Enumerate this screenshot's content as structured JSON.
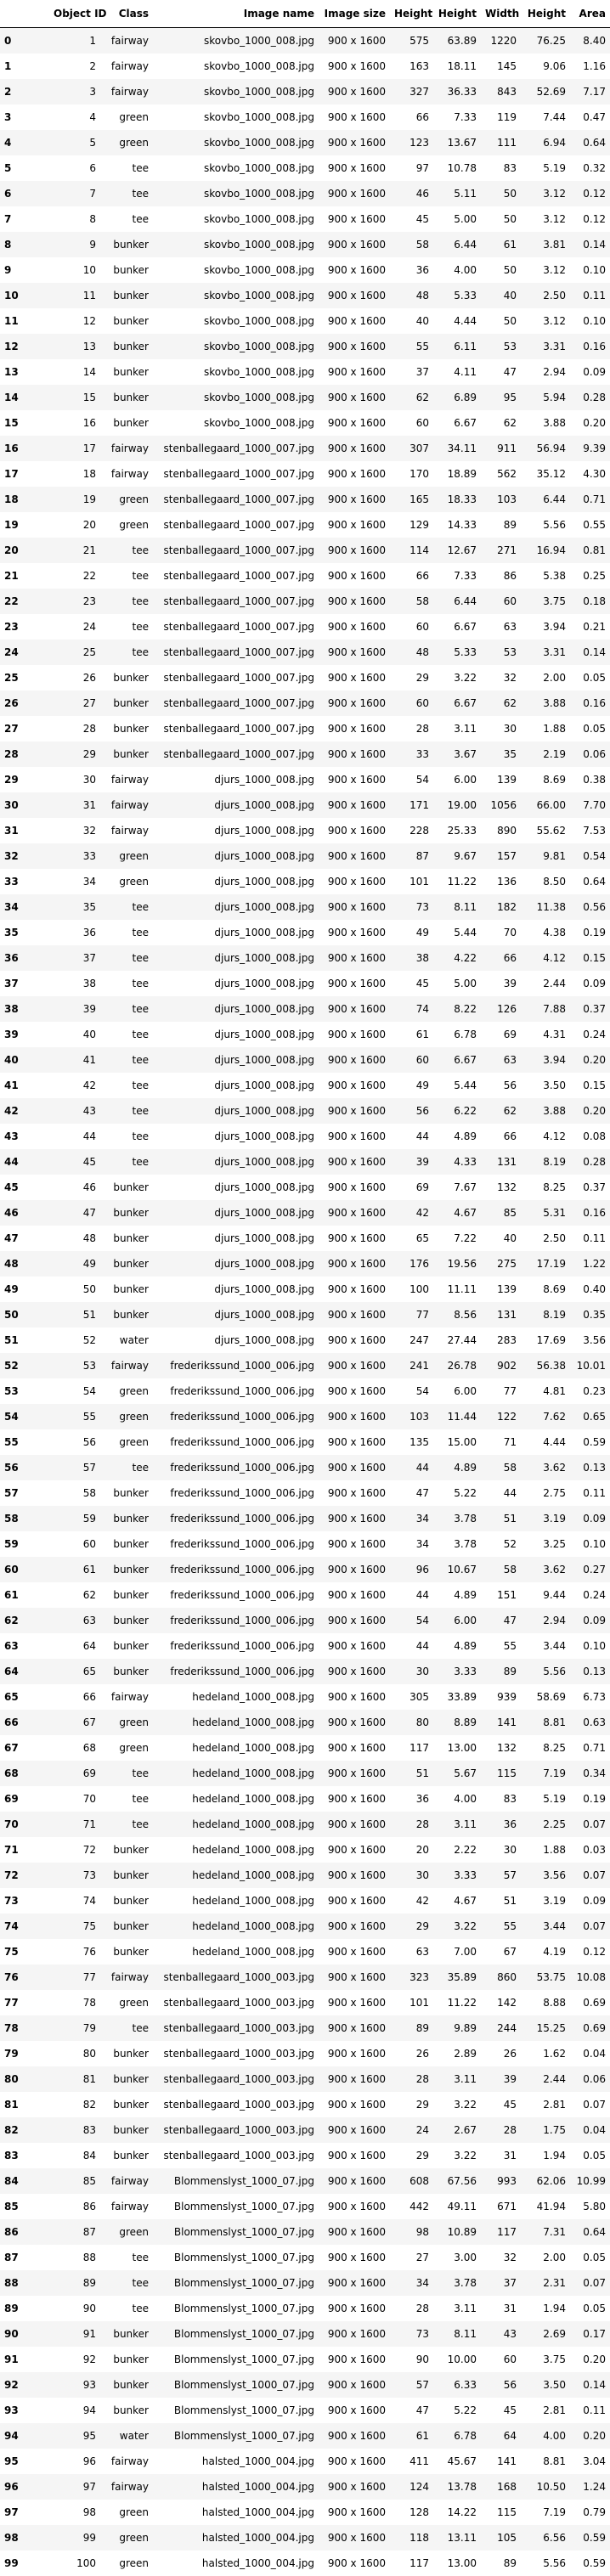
{
  "table": {
    "columns": [
      "",
      "Object ID",
      "Class",
      "Image name",
      "Image size",
      "Height",
      "Height",
      "Width",
      "Height",
      "Area"
    ],
    "rows": [
      [
        "0",
        "1",
        "fairway",
        "skovbo_1000_008.jpg",
        "900 x 1600",
        "575",
        "63.89",
        "1220",
        "76.25",
        "8.40"
      ],
      [
        "1",
        "2",
        "fairway",
        "skovbo_1000_008.jpg",
        "900 x 1600",
        "163",
        "18.11",
        "145",
        "9.06",
        "1.16"
      ],
      [
        "2",
        "3",
        "fairway",
        "skovbo_1000_008.jpg",
        "900 x 1600",
        "327",
        "36.33",
        "843",
        "52.69",
        "7.17"
      ],
      [
        "3",
        "4",
        "green",
        "skovbo_1000_008.jpg",
        "900 x 1600",
        "66",
        "7.33",
        "119",
        "7.44",
        "0.47"
      ],
      [
        "4",
        "5",
        "green",
        "skovbo_1000_008.jpg",
        "900 x 1600",
        "123",
        "13.67",
        "111",
        "6.94",
        "0.64"
      ],
      [
        "5",
        "6",
        "tee",
        "skovbo_1000_008.jpg",
        "900 x 1600",
        "97",
        "10.78",
        "83",
        "5.19",
        "0.32"
      ],
      [
        "6",
        "7",
        "tee",
        "skovbo_1000_008.jpg",
        "900 x 1600",
        "46",
        "5.11",
        "50",
        "3.12",
        "0.12"
      ],
      [
        "7",
        "8",
        "tee",
        "skovbo_1000_008.jpg",
        "900 x 1600",
        "45",
        "5.00",
        "50",
        "3.12",
        "0.12"
      ],
      [
        "8",
        "9",
        "bunker",
        "skovbo_1000_008.jpg",
        "900 x 1600",
        "58",
        "6.44",
        "61",
        "3.81",
        "0.14"
      ],
      [
        "9",
        "10",
        "bunker",
        "skovbo_1000_008.jpg",
        "900 x 1600",
        "36",
        "4.00",
        "50",
        "3.12",
        "0.10"
      ],
      [
        "10",
        "11",
        "bunker",
        "skovbo_1000_008.jpg",
        "900 x 1600",
        "48",
        "5.33",
        "40",
        "2.50",
        "0.11"
      ],
      [
        "11",
        "12",
        "bunker",
        "skovbo_1000_008.jpg",
        "900 x 1600",
        "40",
        "4.44",
        "50",
        "3.12",
        "0.10"
      ],
      [
        "12",
        "13",
        "bunker",
        "skovbo_1000_008.jpg",
        "900 x 1600",
        "55",
        "6.11",
        "53",
        "3.31",
        "0.16"
      ],
      [
        "13",
        "14",
        "bunker",
        "skovbo_1000_008.jpg",
        "900 x 1600",
        "37",
        "4.11",
        "47",
        "2.94",
        "0.09"
      ],
      [
        "14",
        "15",
        "bunker",
        "skovbo_1000_008.jpg",
        "900 x 1600",
        "62",
        "6.89",
        "95",
        "5.94",
        "0.28"
      ],
      [
        "15",
        "16",
        "bunker",
        "skovbo_1000_008.jpg",
        "900 x 1600",
        "60",
        "6.67",
        "62",
        "3.88",
        "0.20"
      ],
      [
        "16",
        "17",
        "fairway",
        "stenballegaard_1000_007.jpg",
        "900 x 1600",
        "307",
        "34.11",
        "911",
        "56.94",
        "9.39"
      ],
      [
        "17",
        "18",
        "fairway",
        "stenballegaard_1000_007.jpg",
        "900 x 1600",
        "170",
        "18.89",
        "562",
        "35.12",
        "4.30"
      ],
      [
        "18",
        "19",
        "green",
        "stenballegaard_1000_007.jpg",
        "900 x 1600",
        "165",
        "18.33",
        "103",
        "6.44",
        "0.71"
      ],
      [
        "19",
        "20",
        "green",
        "stenballegaard_1000_007.jpg",
        "900 x 1600",
        "129",
        "14.33",
        "89",
        "5.56",
        "0.55"
      ],
      [
        "20",
        "21",
        "tee",
        "stenballegaard_1000_007.jpg",
        "900 x 1600",
        "114",
        "12.67",
        "271",
        "16.94",
        "0.81"
      ],
      [
        "21",
        "22",
        "tee",
        "stenballegaard_1000_007.jpg",
        "900 x 1600",
        "66",
        "7.33",
        "86",
        "5.38",
        "0.25"
      ],
      [
        "22",
        "23",
        "tee",
        "stenballegaard_1000_007.jpg",
        "900 x 1600",
        "58",
        "6.44",
        "60",
        "3.75",
        "0.18"
      ],
      [
        "23",
        "24",
        "tee",
        "stenballegaard_1000_007.jpg",
        "900 x 1600",
        "60",
        "6.67",
        "63",
        "3.94",
        "0.21"
      ],
      [
        "24",
        "25",
        "tee",
        "stenballegaard_1000_007.jpg",
        "900 x 1600",
        "48",
        "5.33",
        "53",
        "3.31",
        "0.14"
      ],
      [
        "25",
        "26",
        "bunker",
        "stenballegaard_1000_007.jpg",
        "900 x 1600",
        "29",
        "3.22",
        "32",
        "2.00",
        "0.05"
      ],
      [
        "26",
        "27",
        "bunker",
        "stenballegaard_1000_007.jpg",
        "900 x 1600",
        "60",
        "6.67",
        "62",
        "3.88",
        "0.16"
      ],
      [
        "27",
        "28",
        "bunker",
        "stenballegaard_1000_007.jpg",
        "900 x 1600",
        "28",
        "3.11",
        "30",
        "1.88",
        "0.05"
      ],
      [
        "28",
        "29",
        "bunker",
        "stenballegaard_1000_007.jpg",
        "900 x 1600",
        "33",
        "3.67",
        "35",
        "2.19",
        "0.06"
      ],
      [
        "29",
        "30",
        "fairway",
        "djurs_1000_008.jpg",
        "900 x 1600",
        "54",
        "6.00",
        "139",
        "8.69",
        "0.38"
      ],
      [
        "30",
        "31",
        "fairway",
        "djurs_1000_008.jpg",
        "900 x 1600",
        "171",
        "19.00",
        "1056",
        "66.00",
        "7.70"
      ],
      [
        "31",
        "32",
        "fairway",
        "djurs_1000_008.jpg",
        "900 x 1600",
        "228",
        "25.33",
        "890",
        "55.62",
        "7.53"
      ],
      [
        "32",
        "33",
        "green",
        "djurs_1000_008.jpg",
        "900 x 1600",
        "87",
        "9.67",
        "157",
        "9.81",
        "0.54"
      ],
      [
        "33",
        "34",
        "green",
        "djurs_1000_008.jpg",
        "900 x 1600",
        "101",
        "11.22",
        "136",
        "8.50",
        "0.64"
      ],
      [
        "34",
        "35",
        "tee",
        "djurs_1000_008.jpg",
        "900 x 1600",
        "73",
        "8.11",
        "182",
        "11.38",
        "0.56"
      ],
      [
        "35",
        "36",
        "tee",
        "djurs_1000_008.jpg",
        "900 x 1600",
        "49",
        "5.44",
        "70",
        "4.38",
        "0.19"
      ],
      [
        "36",
        "37",
        "tee",
        "djurs_1000_008.jpg",
        "900 x 1600",
        "38",
        "4.22",
        "66",
        "4.12",
        "0.15"
      ],
      [
        "37",
        "38",
        "tee",
        "djurs_1000_008.jpg",
        "900 x 1600",
        "45",
        "5.00",
        "39",
        "2.44",
        "0.09"
      ],
      [
        "38",
        "39",
        "tee",
        "djurs_1000_008.jpg",
        "900 x 1600",
        "74",
        "8.22",
        "126",
        "7.88",
        "0.37"
      ],
      [
        "39",
        "40",
        "tee",
        "djurs_1000_008.jpg",
        "900 x 1600",
        "61",
        "6.78",
        "69",
        "4.31",
        "0.24"
      ],
      [
        "40",
        "41",
        "tee",
        "djurs_1000_008.jpg",
        "900 x 1600",
        "60",
        "6.67",
        "63",
        "3.94",
        "0.20"
      ],
      [
        "41",
        "42",
        "tee",
        "djurs_1000_008.jpg",
        "900 x 1600",
        "49",
        "5.44",
        "56",
        "3.50",
        "0.15"
      ],
      [
        "42",
        "43",
        "tee",
        "djurs_1000_008.jpg",
        "900 x 1600",
        "56",
        "6.22",
        "62",
        "3.88",
        "0.20"
      ],
      [
        "43",
        "44",
        "tee",
        "djurs_1000_008.jpg",
        "900 x 1600",
        "44",
        "4.89",
        "66",
        "4.12",
        "0.08"
      ],
      [
        "44",
        "45",
        "tee",
        "djurs_1000_008.jpg",
        "900 x 1600",
        "39",
        "4.33",
        "131",
        "8.19",
        "0.28"
      ],
      [
        "45",
        "46",
        "bunker",
        "djurs_1000_008.jpg",
        "900 x 1600",
        "69",
        "7.67",
        "132",
        "8.25",
        "0.37"
      ],
      [
        "46",
        "47",
        "bunker",
        "djurs_1000_008.jpg",
        "900 x 1600",
        "42",
        "4.67",
        "85",
        "5.31",
        "0.16"
      ],
      [
        "47",
        "48",
        "bunker",
        "djurs_1000_008.jpg",
        "900 x 1600",
        "65",
        "7.22",
        "40",
        "2.50",
        "0.11"
      ],
      [
        "48",
        "49",
        "bunker",
        "djurs_1000_008.jpg",
        "900 x 1600",
        "176",
        "19.56",
        "275",
        "17.19",
        "1.22"
      ],
      [
        "49",
        "50",
        "bunker",
        "djurs_1000_008.jpg",
        "900 x 1600",
        "100",
        "11.11",
        "139",
        "8.69",
        "0.40"
      ],
      [
        "50",
        "51",
        "bunker",
        "djurs_1000_008.jpg",
        "900 x 1600",
        "77",
        "8.56",
        "131",
        "8.19",
        "0.35"
      ],
      [
        "51",
        "52",
        "water",
        "djurs_1000_008.jpg",
        "900 x 1600",
        "247",
        "27.44",
        "283",
        "17.69",
        "3.56"
      ],
      [
        "52",
        "53",
        "fairway",
        "frederikssund_1000_006.jpg",
        "900 x 1600",
        "241",
        "26.78",
        "902",
        "56.38",
        "10.01"
      ],
      [
        "53",
        "54",
        "green",
        "frederikssund_1000_006.jpg",
        "900 x 1600",
        "54",
        "6.00",
        "77",
        "4.81",
        "0.23"
      ],
      [
        "54",
        "55",
        "green",
        "frederikssund_1000_006.jpg",
        "900 x 1600",
        "103",
        "11.44",
        "122",
        "7.62",
        "0.65"
      ],
      [
        "55",
        "56",
        "green",
        "frederikssund_1000_006.jpg",
        "900 x 1600",
        "135",
        "15.00",
        "71",
        "4.44",
        "0.59"
      ],
      [
        "56",
        "57",
        "tee",
        "frederikssund_1000_006.jpg",
        "900 x 1600",
        "44",
        "4.89",
        "58",
        "3.62",
        "0.13"
      ],
      [
        "57",
        "58",
        "bunker",
        "frederikssund_1000_006.jpg",
        "900 x 1600",
        "47",
        "5.22",
        "44",
        "2.75",
        "0.11"
      ],
      [
        "58",
        "59",
        "bunker",
        "frederikssund_1000_006.jpg",
        "900 x 1600",
        "34",
        "3.78",
        "51",
        "3.19",
        "0.09"
      ],
      [
        "59",
        "60",
        "bunker",
        "frederikssund_1000_006.jpg",
        "900 x 1600",
        "34",
        "3.78",
        "52",
        "3.25",
        "0.10"
      ],
      [
        "60",
        "61",
        "bunker",
        "frederikssund_1000_006.jpg",
        "900 x 1600",
        "96",
        "10.67",
        "58",
        "3.62",
        "0.27"
      ],
      [
        "61",
        "62",
        "bunker",
        "frederikssund_1000_006.jpg",
        "900 x 1600",
        "44",
        "4.89",
        "151",
        "9.44",
        "0.24"
      ],
      [
        "62",
        "63",
        "bunker",
        "frederikssund_1000_006.jpg",
        "900 x 1600",
        "54",
        "6.00",
        "47",
        "2.94",
        "0.09"
      ],
      [
        "63",
        "64",
        "bunker",
        "frederikssund_1000_006.jpg",
        "900 x 1600",
        "44",
        "4.89",
        "55",
        "3.44",
        "0.10"
      ],
      [
        "64",
        "65",
        "bunker",
        "frederikssund_1000_006.jpg",
        "900 x 1600",
        "30",
        "3.33",
        "89",
        "5.56",
        "0.13"
      ],
      [
        "65",
        "66",
        "fairway",
        "hedeland_1000_008.jpg",
        "900 x 1600",
        "305",
        "33.89",
        "939",
        "58.69",
        "6.73"
      ],
      [
        "66",
        "67",
        "green",
        "hedeland_1000_008.jpg",
        "900 x 1600",
        "80",
        "8.89",
        "141",
        "8.81",
        "0.63"
      ],
      [
        "67",
        "68",
        "green",
        "hedeland_1000_008.jpg",
        "900 x 1600",
        "117",
        "13.00",
        "132",
        "8.25",
        "0.71"
      ],
      [
        "68",
        "69",
        "tee",
        "hedeland_1000_008.jpg",
        "900 x 1600",
        "51",
        "5.67",
        "115",
        "7.19",
        "0.34"
      ],
      [
        "69",
        "70",
        "tee",
        "hedeland_1000_008.jpg",
        "900 x 1600",
        "36",
        "4.00",
        "83",
        "5.19",
        "0.19"
      ],
      [
        "70",
        "71",
        "tee",
        "hedeland_1000_008.jpg",
        "900 x 1600",
        "28",
        "3.11",
        "36",
        "2.25",
        "0.07"
      ],
      [
        "71",
        "72",
        "bunker",
        "hedeland_1000_008.jpg",
        "900 x 1600",
        "20",
        "2.22",
        "30",
        "1.88",
        "0.03"
      ],
      [
        "72",
        "73",
        "bunker",
        "hedeland_1000_008.jpg",
        "900 x 1600",
        "30",
        "3.33",
        "57",
        "3.56",
        "0.07"
      ],
      [
        "73",
        "74",
        "bunker",
        "hedeland_1000_008.jpg",
        "900 x 1600",
        "42",
        "4.67",
        "51",
        "3.19",
        "0.09"
      ],
      [
        "74",
        "75",
        "bunker",
        "hedeland_1000_008.jpg",
        "900 x 1600",
        "29",
        "3.22",
        "55",
        "3.44",
        "0.07"
      ],
      [
        "75",
        "76",
        "bunker",
        "hedeland_1000_008.jpg",
        "900 x 1600",
        "63",
        "7.00",
        "67",
        "4.19",
        "0.12"
      ],
      [
        "76",
        "77",
        "fairway",
        "stenballegaard_1000_003.jpg",
        "900 x 1600",
        "323",
        "35.89",
        "860",
        "53.75",
        "10.08"
      ],
      [
        "77",
        "78",
        "green",
        "stenballegaard_1000_003.jpg",
        "900 x 1600",
        "101",
        "11.22",
        "142",
        "8.88",
        "0.69"
      ],
      [
        "78",
        "79",
        "tee",
        "stenballegaard_1000_003.jpg",
        "900 x 1600",
        "89",
        "9.89",
        "244",
        "15.25",
        "0.69"
      ],
      [
        "79",
        "80",
        "bunker",
        "stenballegaard_1000_003.jpg",
        "900 x 1600",
        "26",
        "2.89",
        "26",
        "1.62",
        "0.04"
      ],
      [
        "80",
        "81",
        "bunker",
        "stenballegaard_1000_003.jpg",
        "900 x 1600",
        "28",
        "3.11",
        "39",
        "2.44",
        "0.06"
      ],
      [
        "81",
        "82",
        "bunker",
        "stenballegaard_1000_003.jpg",
        "900 x 1600",
        "29",
        "3.22",
        "45",
        "2.81",
        "0.07"
      ],
      [
        "82",
        "83",
        "bunker",
        "stenballegaard_1000_003.jpg",
        "900 x 1600",
        "24",
        "2.67",
        "28",
        "1.75",
        "0.04"
      ],
      [
        "83",
        "84",
        "bunker",
        "stenballegaard_1000_003.jpg",
        "900 x 1600",
        "29",
        "3.22",
        "31",
        "1.94",
        "0.05"
      ],
      [
        "84",
        "85",
        "fairway",
        "Blommenslyst_1000_07.jpg",
        "900 x 1600",
        "608",
        "67.56",
        "993",
        "62.06",
        "10.99"
      ],
      [
        "85",
        "86",
        "fairway",
        "Blommenslyst_1000_07.jpg",
        "900 x 1600",
        "442",
        "49.11",
        "671",
        "41.94",
        "5.80"
      ],
      [
        "86",
        "87",
        "green",
        "Blommenslyst_1000_07.jpg",
        "900 x 1600",
        "98",
        "10.89",
        "117",
        "7.31",
        "0.64"
      ],
      [
        "87",
        "88",
        "tee",
        "Blommenslyst_1000_07.jpg",
        "900 x 1600",
        "27",
        "3.00",
        "32",
        "2.00",
        "0.05"
      ],
      [
        "88",
        "89",
        "tee",
        "Blommenslyst_1000_07.jpg",
        "900 x 1600",
        "34",
        "3.78",
        "37",
        "2.31",
        "0.07"
      ],
      [
        "89",
        "90",
        "tee",
        "Blommenslyst_1000_07.jpg",
        "900 x 1600",
        "28",
        "3.11",
        "31",
        "1.94",
        "0.05"
      ],
      [
        "90",
        "91",
        "bunker",
        "Blommenslyst_1000_07.jpg",
        "900 x 1600",
        "73",
        "8.11",
        "43",
        "2.69",
        "0.17"
      ],
      [
        "91",
        "92",
        "bunker",
        "Blommenslyst_1000_07.jpg",
        "900 x 1600",
        "90",
        "10.00",
        "60",
        "3.75",
        "0.20"
      ],
      [
        "92",
        "93",
        "bunker",
        "Blommenslyst_1000_07.jpg",
        "900 x 1600",
        "57",
        "6.33",
        "56",
        "3.50",
        "0.14"
      ],
      [
        "93",
        "94",
        "bunker",
        "Blommenslyst_1000_07.jpg",
        "900 x 1600",
        "47",
        "5.22",
        "45",
        "2.81",
        "0.11"
      ],
      [
        "94",
        "95",
        "water",
        "Blommenslyst_1000_07.jpg",
        "900 x 1600",
        "61",
        "6.78",
        "64",
        "4.00",
        "0.20"
      ],
      [
        "95",
        "96",
        "fairway",
        "halsted_1000_004.jpg",
        "900 x 1600",
        "411",
        "45.67",
        "141",
        "8.81",
        "3.04"
      ],
      [
        "96",
        "97",
        "fairway",
        "halsted_1000_004.jpg",
        "900 x 1600",
        "124",
        "13.78",
        "168",
        "10.50",
        "1.24"
      ],
      [
        "97",
        "98",
        "green",
        "halsted_1000_004.jpg",
        "900 x 1600",
        "128",
        "14.22",
        "115",
        "7.19",
        "0.79"
      ],
      [
        "98",
        "99",
        "green",
        "halsted_1000_004.jpg",
        "900 x 1600",
        "118",
        "13.11",
        "105",
        "6.56",
        "0.59"
      ],
      [
        "99",
        "100",
        "green",
        "halsted_1000_004.jpg",
        "900 x 1600",
        "117",
        "13.00",
        "89",
        "5.56",
        "0.59"
      ]
    ]
  }
}
